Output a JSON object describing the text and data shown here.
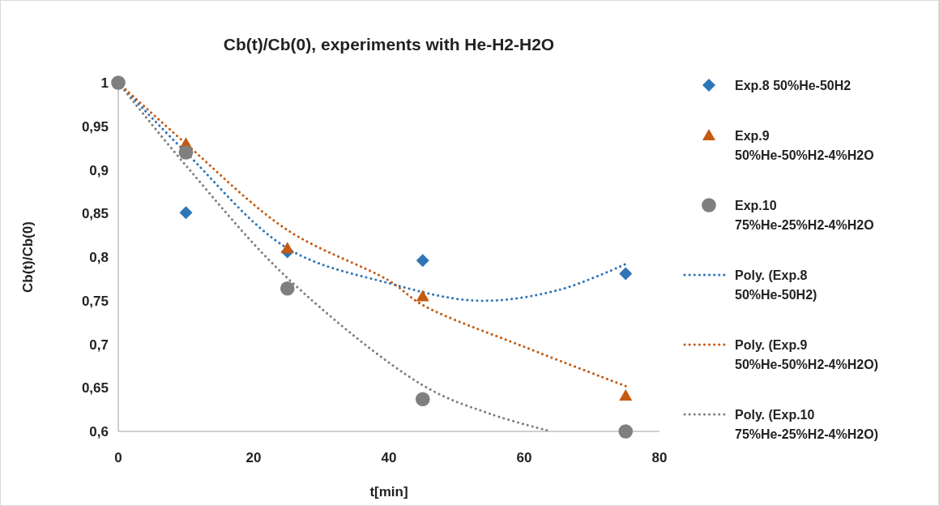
{
  "chart_data": {
    "type": "scatter",
    "title": "Cb(t)/Cb(0), experiments with He-H2-H2O",
    "xlabel": "t[min]",
    "ylabel": "Cb(t)/Cb(0)",
    "xlim": [
      0,
      80
    ],
    "xticks": [
      0,
      20,
      40,
      60,
      80
    ],
    "ylim": [
      0.6,
      1
    ],
    "yticks": [
      {
        "value": 0.6,
        "label": "0,6"
      },
      {
        "value": 0.65,
        "label": "0,65"
      },
      {
        "value": 0.7,
        "label": "0,7"
      },
      {
        "value": 0.75,
        "label": "0,75"
      },
      {
        "value": 0.8,
        "label": "0,8"
      },
      {
        "value": 0.85,
        "label": "0,85"
      },
      {
        "value": 0.9,
        "label": "0,9"
      },
      {
        "value": 0.95,
        "label": "0,95"
      },
      {
        "value": 1,
        "label": "1"
      }
    ],
    "grid": false,
    "legend": "right",
    "series": [
      {
        "name": "Exp.8 50%He-50H2",
        "marker": "diamond",
        "color": "#2e75b6",
        "x": [
          10,
          25,
          45,
          75
        ],
        "values": [
          0.851,
          0.806,
          0.796,
          0.781
        ]
      },
      {
        "name": "Exp.9 50%He-50%H2-4%H2O",
        "marker": "triangle",
        "color": "#c55a11",
        "x": [
          10,
          25,
          45,
          75
        ],
        "values": [
          0.93,
          0.81,
          0.755,
          0.641
        ]
      },
      {
        "name": "Exp.10 75%He-25%H2-4%H2O",
        "marker": "circle",
        "color": "#7f7f7f",
        "x": [
          0,
          10,
          25,
          45,
          75
        ],
        "values": [
          1,
          0.92,
          0.764,
          0.637,
          0.6
        ]
      },
      {
        "name": "Poly.  (Exp.8 50%He-50H2)",
        "type": "line",
        "line_style": "dotted",
        "color": "#2e75b6",
        "x": [
          0,
          10,
          25,
          40,
          53,
          65,
          75
        ],
        "values": [
          1,
          0.92,
          0.81,
          0.77,
          0.75,
          0.762,
          0.792
        ]
      },
      {
        "name": "Poly.  (Exp.9 50%He-50%H2-4%H2O)",
        "type": "line",
        "line_style": "dotted",
        "color": "#c55a11",
        "x": [
          0,
          10,
          25,
          40,
          45,
          60,
          75
        ],
        "values": [
          1,
          0.93,
          0.831,
          0.773,
          0.745,
          0.697,
          0.652
        ]
      },
      {
        "name": "Poly.  (Exp.10 75%He-25%H2-4%H2O)",
        "type": "line",
        "line_style": "dotted",
        "color": "#7f7f7f",
        "x": [
          0,
          10,
          25,
          45,
          55,
          64
        ],
        "values": [
          1,
          0.905,
          0.776,
          0.653,
          0.62,
          0.6
        ]
      }
    ]
  }
}
